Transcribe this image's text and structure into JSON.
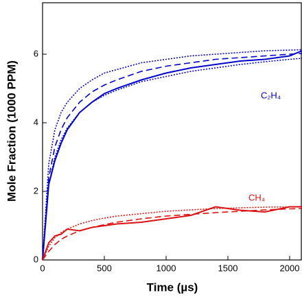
{
  "chart_data": {
    "type": "line",
    "xlabel": "Time (µs)",
    "ylabel": "Mole Fraction (1000 PPM)",
    "x": [
      0,
      50,
      100,
      150,
      200,
      300,
      400,
      500,
      600,
      800,
      1000,
      1200,
      1400,
      1600,
      1800,
      2000,
      2100
    ],
    "series": [
      {
        "color": "#0000cc",
        "dash": "solid",
        "values": [
          0,
          2.2,
          2.9,
          3.4,
          3.8,
          4.3,
          4.6,
          4.85,
          5.0,
          5.25,
          5.45,
          5.6,
          5.7,
          5.8,
          5.85,
          5.95,
          6.1
        ]
      },
      {
        "color": "#0000cc",
        "dash": "dashed",
        "values": [
          0,
          2.4,
          3.3,
          3.8,
          4.15,
          4.6,
          4.9,
          5.1,
          5.25,
          5.5,
          5.65,
          5.75,
          5.85,
          5.9,
          5.95,
          6.0,
          6.02
        ]
      },
      {
        "color": "#0000cc",
        "dash": "dotted",
        "values": [
          0,
          2.8,
          3.8,
          4.3,
          4.6,
          5.0,
          5.25,
          5.45,
          5.55,
          5.75,
          5.85,
          5.95,
          6.0,
          6.05,
          6.1,
          6.12,
          6.13
        ]
      },
      {
        "color": "#0000cc",
        "dash": "dotted",
        "values": [
          0,
          2.2,
          3.0,
          3.5,
          3.85,
          4.3,
          4.6,
          4.8,
          4.95,
          5.2,
          5.35,
          5.5,
          5.6,
          5.7,
          5.78,
          5.85,
          5.88
        ]
      },
      {
        "color": "#dd1111",
        "dash": "solid",
        "values": [
          0,
          0.5,
          0.7,
          0.75,
          0.9,
          0.85,
          0.95,
          1.0,
          1.05,
          1.1,
          1.2,
          1.3,
          1.55,
          1.45,
          1.4,
          1.55,
          1.55
        ]
      },
      {
        "color": "#dd1111",
        "dash": "dashed",
        "values": [
          0,
          0.25,
          0.45,
          0.6,
          0.7,
          0.85,
          0.95,
          1.03,
          1.1,
          1.2,
          1.28,
          1.33,
          1.38,
          1.42,
          1.46,
          1.49,
          1.5
        ]
      },
      {
        "color": "#dd1111",
        "dash": "dotted",
        "values": [
          0,
          0.4,
          0.65,
          0.8,
          0.9,
          1.05,
          1.15,
          1.22,
          1.28,
          1.35,
          1.42,
          1.46,
          1.5,
          1.52,
          1.54,
          1.55,
          1.56
        ]
      }
    ],
    "annotations": [
      {
        "text": "C₂H₄",
        "color": "#0000cc"
      },
      {
        "text": "CH₄",
        "color": "#dd1111"
      }
    ],
    "xlim": [
      0,
      2100
    ],
    "ylim": [
      0,
      7.5
    ],
    "xticks": [
      0,
      500,
      1000,
      1500,
      2000
    ],
    "yticks": [
      0,
      2,
      4,
      6
    ]
  }
}
